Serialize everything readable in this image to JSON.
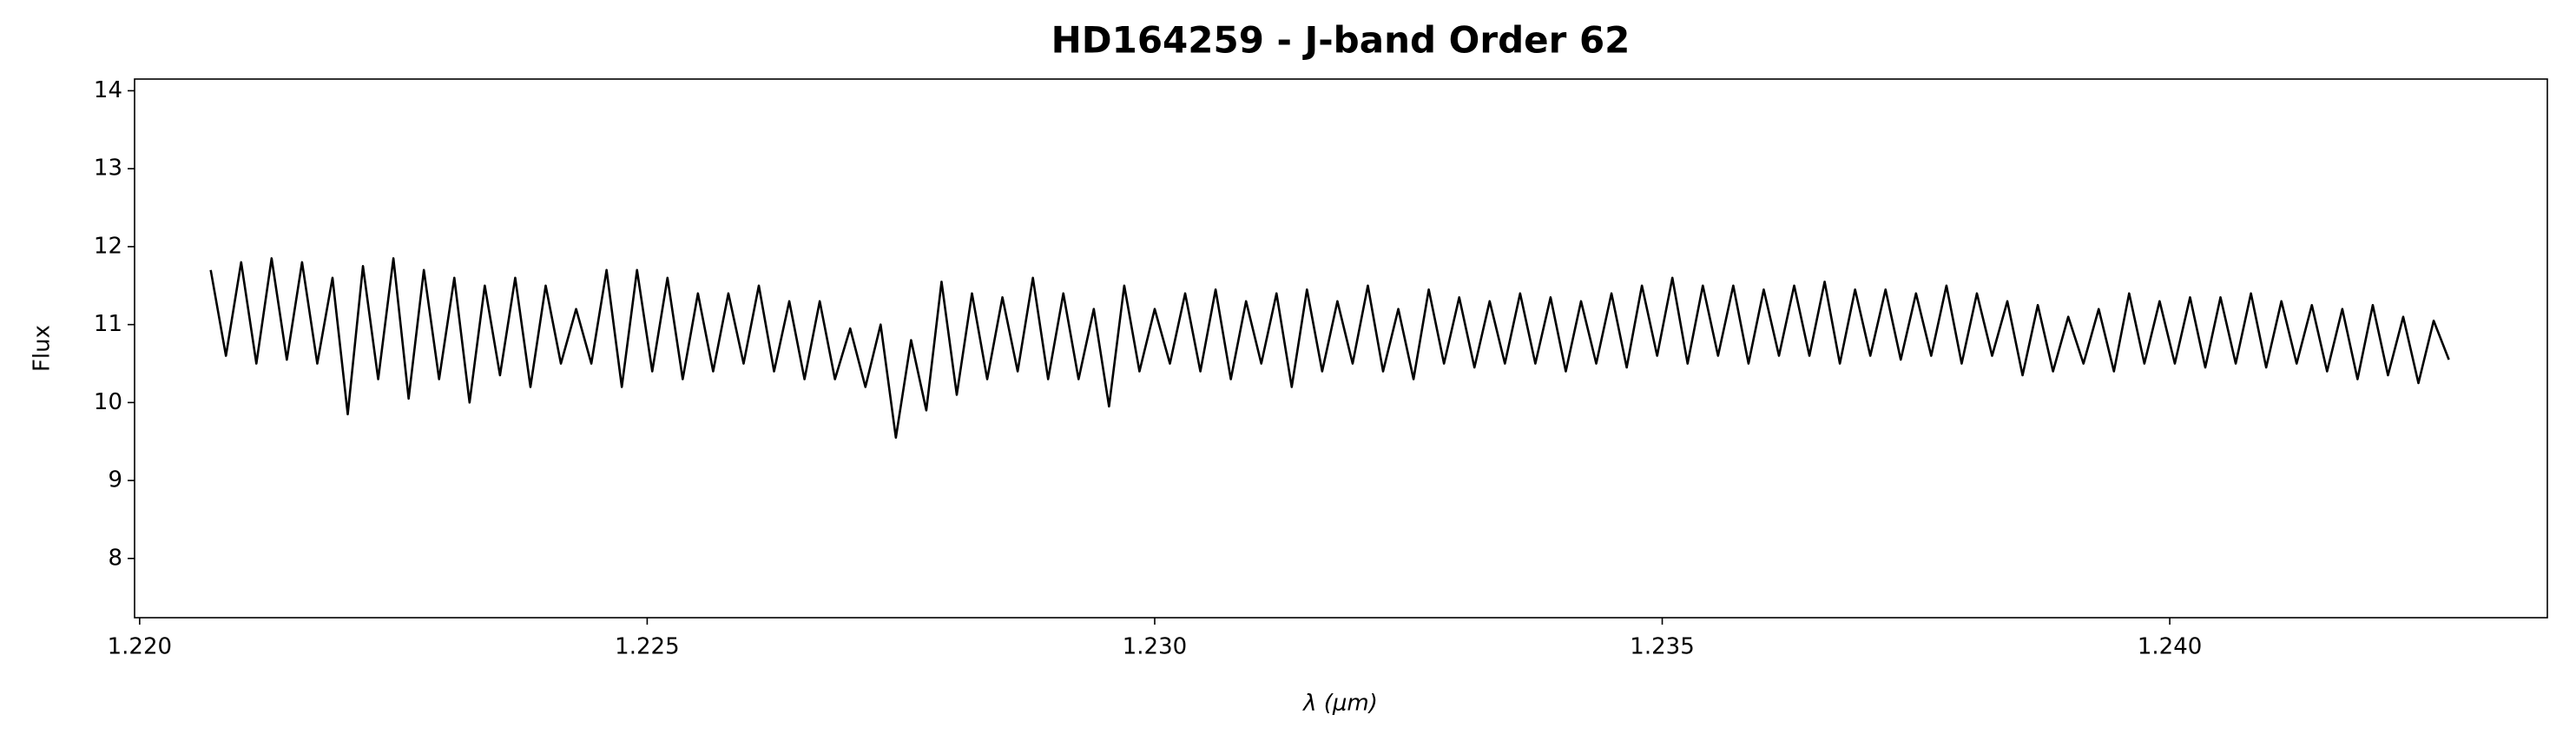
{
  "chart_data": {
    "type": "line",
    "title": "HD164259 - J-band Order 62",
    "x_label": "λ (μm)",
    "y_label": "Flux",
    "xlim": [
      1.21995,
      1.24372
    ],
    "ylim": [
      7.24,
      14.15
    ],
    "xticks": [
      {
        "value": 1.22,
        "label": "1.220"
      },
      {
        "value": 1.225,
        "label": "1.225"
      },
      {
        "value": 1.23,
        "label": "1.230"
      },
      {
        "value": 1.235,
        "label": "1.235"
      },
      {
        "value": 1.24,
        "label": "1.240"
      }
    ],
    "yticks": [
      8,
      9,
      10,
      11,
      12,
      13,
      14
    ],
    "series": [
      {
        "color": "#000000",
        "x": [
          1.2207,
          1.22085,
          1.221,
          1.22115,
          1.2213,
          1.22145,
          1.2216,
          1.22175,
          1.2219,
          1.22205,
          1.2222,
          1.22235,
          1.2225,
          1.22265,
          1.2228,
          1.22295,
          1.2231,
          1.22325,
          1.2234,
          1.22355,
          1.2237,
          1.22385,
          1.224,
          1.22415,
          1.2243,
          1.22445,
          1.2246,
          1.22475,
          1.2249,
          1.22505,
          1.2252,
          1.22535,
          1.2255,
          1.22565,
          1.2258,
          1.22595,
          1.2261,
          1.22625,
          1.2264,
          1.22655,
          1.2267,
          1.22685,
          1.227,
          1.22715,
          1.2273,
          1.22745,
          1.2276,
          1.22775,
          1.2279,
          1.22805,
          1.2282,
          1.22835,
          1.2285,
          1.22865,
          1.2288,
          1.22895,
          1.2291,
          1.22925,
          1.2294,
          1.22955,
          1.2297,
          1.22985,
          1.23,
          1.23015,
          1.2303,
          1.23045,
          1.2306,
          1.23075,
          1.2309,
          1.23105,
          1.2312,
          1.23135,
          1.2315,
          1.23165,
          1.2318,
          1.23195,
          1.2321,
          1.23225,
          1.2324,
          1.23255,
          1.2327,
          1.23285,
          1.233,
          1.23315,
          1.2333,
          1.23345,
          1.2336,
          1.23375,
          1.2339,
          1.23405,
          1.2342,
          1.23435,
          1.2345,
          1.23465,
          1.2348,
          1.23495,
          1.2351,
          1.23525,
          1.2354,
          1.23555,
          1.2357,
          1.23585,
          1.236,
          1.23615,
          1.2363,
          1.23645,
          1.2366,
          1.23675,
          1.2369,
          1.23705,
          1.2372,
          1.23735,
          1.2375,
          1.23765,
          1.2378,
          1.23795,
          1.2381,
          1.23825,
          1.2384,
          1.23855,
          1.2387,
          1.23885,
          1.239,
          1.23915,
          1.2393,
          1.23945,
          1.2396,
          1.23975,
          1.2399,
          1.24005,
          1.2402,
          1.24035,
          1.2405,
          1.24065,
          1.2408,
          1.24095,
          1.2411,
          1.24125,
          1.2414,
          1.24155,
          1.2417,
          1.24185,
          1.242,
          1.24215,
          1.2423,
          1.24245,
          1.2426,
          1.24275
        ],
        "values": [
          11.7,
          10.6,
          11.8,
          10.5,
          11.85,
          10.55,
          11.8,
          10.5,
          11.6,
          9.85,
          11.75,
          10.3,
          11.85,
          10.05,
          11.7,
          10.3,
          11.6,
          10.0,
          11.5,
          10.35,
          11.6,
          10.2,
          11.5,
          10.5,
          11.2,
          10.5,
          11.7,
          10.2,
          11.7,
          10.4,
          11.6,
          10.3,
          11.4,
          10.4,
          11.4,
          10.5,
          11.5,
          10.4,
          11.3,
          10.3,
          11.3,
          10.3,
          10.95,
          10.2,
          11.0,
          9.55,
          10.8,
          9.9,
          11.55,
          10.1,
          11.4,
          10.3,
          11.35,
          10.4,
          11.6,
          10.3,
          11.4,
          10.3,
          11.2,
          9.95,
          11.5,
          10.4,
          11.2,
          10.5,
          11.4,
          10.4,
          11.45,
          10.3,
          11.3,
          10.5,
          11.4,
          10.2,
          11.45,
          10.4,
          11.3,
          10.5,
          11.5,
          10.4,
          11.2,
          10.3,
          11.45,
          10.5,
          11.35,
          10.45,
          11.3,
          10.5,
          11.4,
          10.5,
          11.35,
          10.4,
          11.3,
          10.5,
          11.4,
          10.45,
          11.5,
          10.6,
          11.6,
          10.5,
          11.5,
          10.6,
          11.5,
          10.5,
          11.45,
          10.6,
          11.5,
          10.6,
          11.55,
          10.5,
          11.45,
          10.6,
          11.45,
          10.55,
          11.4,
          10.6,
          11.5,
          10.5,
          11.4,
          10.6,
          11.3,
          10.35,
          11.25,
          10.4,
          11.1,
          10.5,
          11.2,
          10.4,
          11.4,
          10.5,
          11.3,
          10.5,
          11.35,
          10.45,
          11.35,
          10.5,
          11.4,
          10.45,
          11.3,
          10.5,
          11.25,
          10.4,
          11.2,
          10.3,
          11.25,
          10.35,
          11.1,
          10.25,
          11.05,
          10.55
        ]
      }
    ]
  }
}
